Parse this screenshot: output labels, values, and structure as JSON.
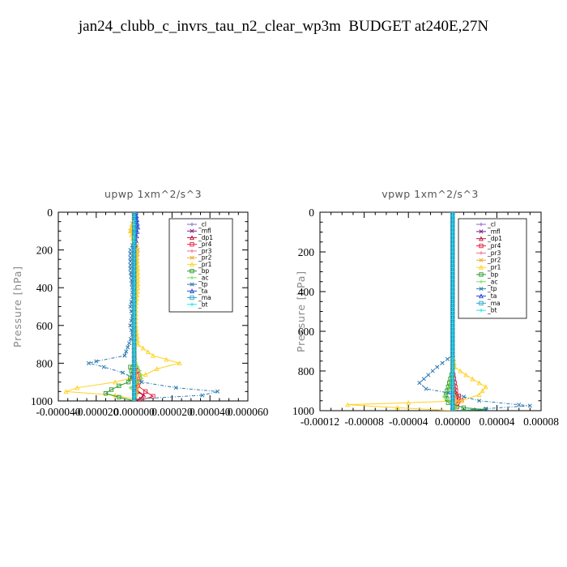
{
  "title": "jan24_clubb_c_invrs_tau_n2_clear_wp3m  BUDGET at240E,27N",
  "legend_entries": [
    "_cl",
    "_mfl",
    "_dp1",
    "_pr4",
    "_pr3",
    "_pr2",
    "_pr1",
    "_bp",
    "_ac",
    "_tp",
    "_ta",
    "_ma",
    "_bt"
  ],
  "colors": {
    "_cl": "#8a5fd6",
    "_mfl": "#7a1f8a",
    "_dp1": "#c0143c",
    "_pr4": "#e8203c",
    "_pr3": "#f07090",
    "_pr2": "#f0a830",
    "_pr1": "#ffd21e",
    "_bp": "#2a9a2a",
    "_ac": "#78e050",
    "_tp": "#2a7ab0",
    "_ta": "#2848d8",
    "_ma": "#2aa8c8",
    "_bt": "#20e8e8"
  },
  "chart_data": [
    {
      "type": "line",
      "title": "upwp   1xm^2/s^3",
      "ylabel": "Pressure [hPa]",
      "xlabel": "",
      "xlim": [
        -4e-05,
        6e-05
      ],
      "ylim": [
        1000,
        0
      ],
      "x_tick_labels": [
        "-0.000040",
        "-0.000020",
        "0.000000",
        "0.000020",
        "0.000040",
        "0.000060"
      ],
      "y_tick_labels": [
        "0",
        "200",
        "400",
        "600",
        "800",
        "1000"
      ],
      "grid": false,
      "legend_position": "top-right",
      "series": [
        {
          "name": "_cl",
          "x": [
            0,
            0,
            0,
            0,
            0,
            0
          ],
          "y": [
            0,
            200,
            400,
            600,
            800,
            1000
          ]
        },
        {
          "name": "_mfl",
          "x": [
            0,
            0,
            0,
            0,
            0,
            0
          ],
          "y": [
            0,
            200,
            400,
            600,
            800,
            1000
          ]
        },
        {
          "name": "_dp1",
          "x": [
            0,
            0,
            0,
            0,
            0,
            0,
            0,
            1e-06,
            2e-06,
            5e-06,
            3e-06,
            0
          ],
          "y": [
            0,
            200,
            400,
            600,
            760,
            820,
            880,
            920,
            950,
            970,
            990,
            1000
          ]
        },
        {
          "name": "_pr4",
          "x": [
            0,
            0,
            0,
            0,
            0,
            3e-06,
            2e-06,
            6e-06,
            1e-05,
            4e-06
          ],
          "y": [
            0,
            200,
            400,
            600,
            800,
            880,
            920,
            950,
            975,
            995
          ]
        },
        {
          "name": "_pr3",
          "x": [
            0,
            0,
            0,
            0,
            0,
            1e-06,
            0
          ],
          "y": [
            0,
            200,
            400,
            600,
            800,
            950,
            1000
          ]
        },
        {
          "name": "_pr2",
          "x": [
            -1e-06,
            -2e-06,
            1e-06,
            2e-06,
            1e-06,
            0,
            0,
            1e-06,
            2e-06,
            1e-06
          ],
          "y": [
            60,
            100,
            150,
            200,
            300,
            500,
            700,
            850,
            920,
            980
          ]
        },
        {
          "name": "_pr1",
          "x": [
            0,
            -2e-06,
            1e-06,
            2e-06,
            2e-06,
            1e-06,
            1e-06,
            2e-06,
            1e-05,
            2.4e-05,
            1.2e-05,
            6e-06,
            -1e-05,
            -3e-05,
            -3.6e-05,
            -1e-05,
            0
          ],
          "y": [
            50,
            100,
            200,
            300,
            400,
            500,
            600,
            700,
            760,
            800,
            830,
            860,
            900,
            930,
            950,
            970,
            990
          ]
        },
        {
          "name": "_bp",
          "x": [
            0,
            0,
            0,
            0,
            0,
            -2e-06,
            -1e-06,
            -3e-06,
            -8e-06,
            -1.2e-05,
            -1.5e-05,
            -8e-06,
            0
          ],
          "y": [
            0,
            200,
            400,
            600,
            800,
            820,
            860,
            900,
            920,
            940,
            960,
            980,
            1000
          ]
        },
        {
          "name": "_ac",
          "x": [
            0,
            0,
            0,
            0,
            0,
            3e-06,
            4e-06,
            2e-06,
            -2e-06,
            1e-06,
            0
          ],
          "y": [
            0,
            200,
            400,
            600,
            780,
            840,
            880,
            900,
            930,
            960,
            1000
          ]
        },
        {
          "name": "_tp",
          "x": [
            1e-06,
            1e-06,
            0,
            -2e-06,
            -2e-06,
            -1e-06,
            -1e-06,
            -2e-06,
            -1e-06,
            -2e-06,
            -1e-06,
            -5e-06,
            -2e-05,
            -2.4e-05,
            -1.6e-05,
            -6e-06,
            4e-06,
            2.2e-05,
            4.4e-05,
            3.6e-05,
            0
          ],
          "y": [
            20,
            80,
            150,
            200,
            300,
            400,
            450,
            500,
            550,
            600,
            650,
            760,
            790,
            800,
            820,
            850,
            900,
            930,
            950,
            970,
            990
          ]
        },
        {
          "name": "_ta",
          "x": [
            1e-06,
            2e-06,
            1e-06,
            0,
            0,
            0,
            0,
            0
          ],
          "y": [
            0,
            80,
            150,
            200,
            400,
            600,
            800,
            1000
          ]
        },
        {
          "name": "_ma",
          "x": [
            0,
            0,
            0,
            0,
            0,
            0
          ],
          "y": [
            0,
            200,
            400,
            600,
            800,
            1000
          ]
        },
        {
          "name": "_bt",
          "x": [
            0,
            0,
            0,
            0,
            0,
            0
          ],
          "y": [
            0,
            200,
            400,
            600,
            800,
            1000
          ]
        }
      ]
    },
    {
      "type": "line",
      "title": "vpwp   1xm^2/s^3",
      "ylabel": "Pressure [hPa]",
      "xlabel": "",
      "xlim": [
        -0.00012,
        8e-05
      ],
      "ylim": [
        1000,
        0
      ],
      "x_tick_labels": [
        "-0.00012",
        "-0.00008",
        "-0.00004",
        "0.00000",
        "0.00004",
        "0.00008"
      ],
      "y_tick_labels": [
        "0",
        "200",
        "400",
        "600",
        "800",
        "1000"
      ],
      "grid": false,
      "legend_position": "top-right",
      "series": [
        {
          "name": "_cl",
          "x": [
            0,
            0,
            0,
            0,
            0,
            0
          ],
          "y": [
            0,
            200,
            400,
            600,
            800,
            1000
          ]
        },
        {
          "name": "_mfl",
          "x": [
            0,
            0,
            0,
            0,
            0,
            0
          ],
          "y": [
            0,
            200,
            400,
            600,
            800,
            1000
          ]
        },
        {
          "name": "_dp1",
          "x": [
            0,
            0,
            0,
            0,
            0,
            2e-06,
            5e-06,
            2e-06,
            0
          ],
          "y": [
            0,
            200,
            400,
            600,
            800,
            900,
            950,
            975,
            1000
          ]
        },
        {
          "name": "_pr4",
          "x": [
            0,
            0,
            0,
            0,
            0,
            3e-06,
            8e-06,
            4e-06,
            0
          ],
          "y": [
            0,
            200,
            400,
            600,
            800,
            900,
            950,
            980,
            1000
          ]
        },
        {
          "name": "_pr3",
          "x": [
            0,
            0,
            0,
            0,
            0,
            2e-06,
            0
          ],
          "y": [
            0,
            200,
            400,
            600,
            800,
            950,
            1000
          ]
        },
        {
          "name": "_pr2",
          "x": [
            0,
            0,
            0,
            0,
            0,
            1e-06,
            4e-06,
            2e-06
          ],
          "y": [
            0,
            200,
            400,
            600,
            800,
            900,
            950,
            990
          ]
        },
        {
          "name": "_pr1",
          "x": [
            0,
            0,
            0,
            0,
            0,
            2e-06,
            1.2e-05,
            3e-05,
            2.4e-05,
            8e-06,
            -4e-05,
            -9.5e-05,
            -5e-05,
            0
          ],
          "y": [
            0,
            200,
            400,
            600,
            700,
            780,
            820,
            880,
            920,
            950,
            960,
            970,
            985,
            1000
          ]
        },
        {
          "name": "_bp",
          "x": [
            0,
            0,
            0,
            0,
            0,
            -4e-06,
            -6e-06,
            -4e-06,
            1e-05,
            3e-05,
            0
          ],
          "y": [
            0,
            200,
            400,
            600,
            800,
            880,
            920,
            960,
            985,
            995,
            1000
          ]
        },
        {
          "name": "_ac",
          "x": [
            0,
            0,
            0,
            0,
            0,
            -4e-06,
            -8e-06,
            -2e-06,
            4e-06,
            0
          ],
          "y": [
            0,
            200,
            400,
            600,
            800,
            900,
            930,
            960,
            985,
            1000
          ]
        },
        {
          "name": "_tp",
          "x": [
            0,
            0,
            0,
            0,
            0,
            -1.4e-05,
            -3e-05,
            -2.4e-05,
            -4e-06,
            2.4e-05,
            6e-05,
            7e-05,
            3e-05,
            0
          ],
          "y": [
            0,
            200,
            400,
            600,
            720,
            780,
            860,
            890,
            910,
            950,
            970,
            975,
            990,
            1000
          ]
        },
        {
          "name": "_ta",
          "x": [
            0,
            0,
            0,
            0,
            0,
            0
          ],
          "y": [
            0,
            200,
            400,
            600,
            800,
            1000
          ]
        },
        {
          "name": "_ma",
          "x": [
            0,
            0,
            0,
            0,
            0,
            0
          ],
          "y": [
            0,
            200,
            400,
            600,
            800,
            1000
          ]
        },
        {
          "name": "_bt",
          "x": [
            0,
            0,
            0,
            0,
            0,
            0
          ],
          "y": [
            0,
            200,
            400,
            600,
            800,
            1000
          ]
        }
      ]
    }
  ]
}
